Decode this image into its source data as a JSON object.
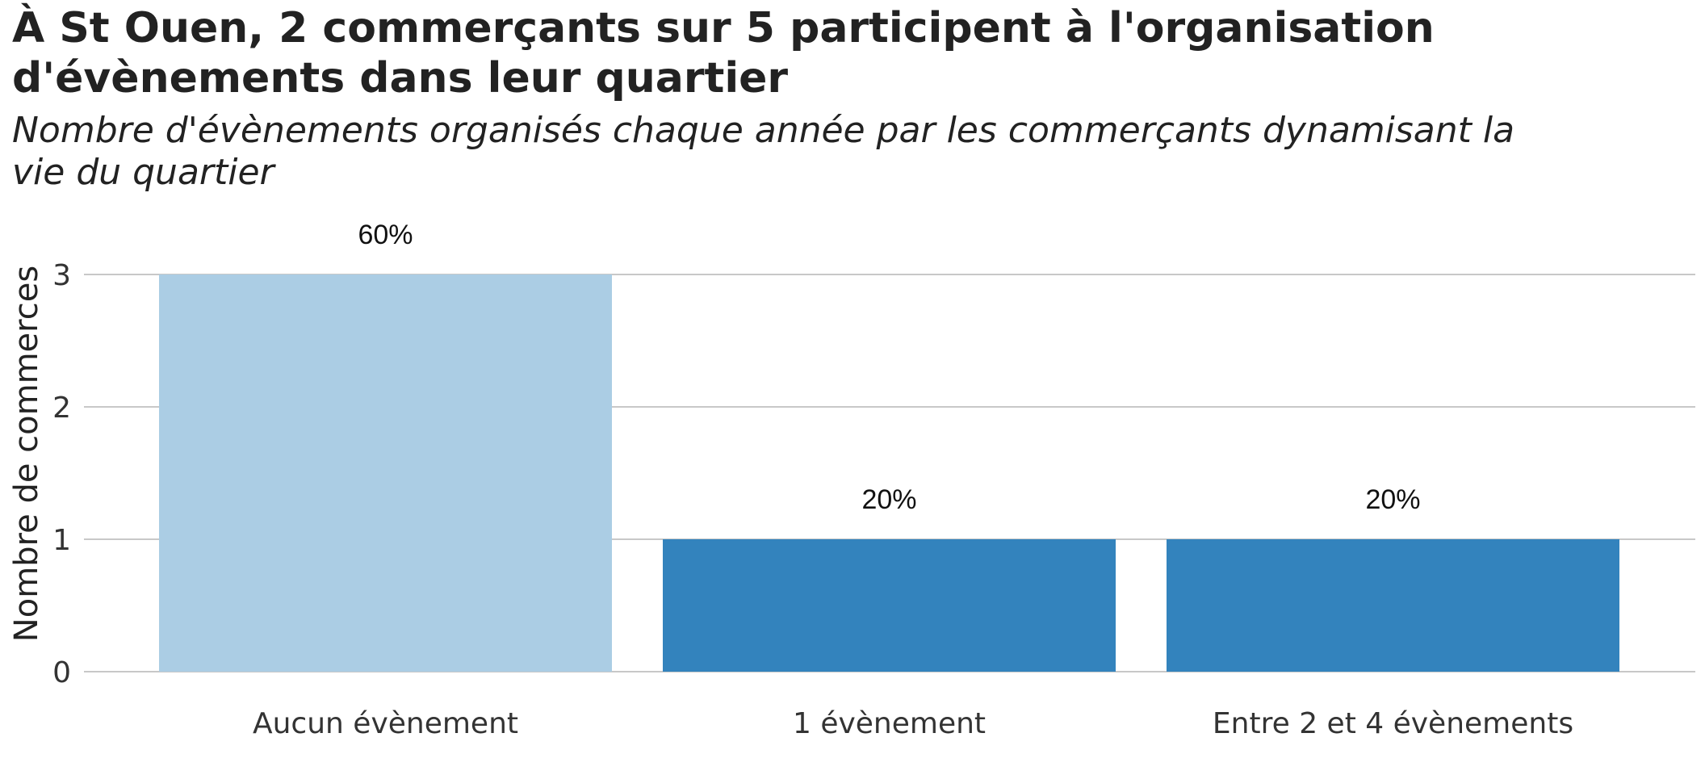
{
  "chart_data": {
    "type": "bar",
    "title": "À St Ouen, 2 commerçants sur 5 participent à l'organisation d'évènements dans leur quartier",
    "subtitle": "Nombre d'évènements organisés chaque année par les commerçants dynamisant la vie du quartier",
    "xlabel": "",
    "ylabel": "Nombre de commerces",
    "categories": [
      "Aucun évènement",
      "1 évènement",
      "Entre 2 et 4 évènements"
    ],
    "values": [
      3,
      1,
      1
    ],
    "data_labels": [
      "60%",
      "20%",
      "20%"
    ],
    "bar_colors": [
      "#abcde4",
      "#3383bd",
      "#3383bd"
    ],
    "ylim": [
      0,
      3
    ],
    "yticks": [
      0,
      1,
      2,
      3
    ],
    "grid": true,
    "legend": "none"
  }
}
